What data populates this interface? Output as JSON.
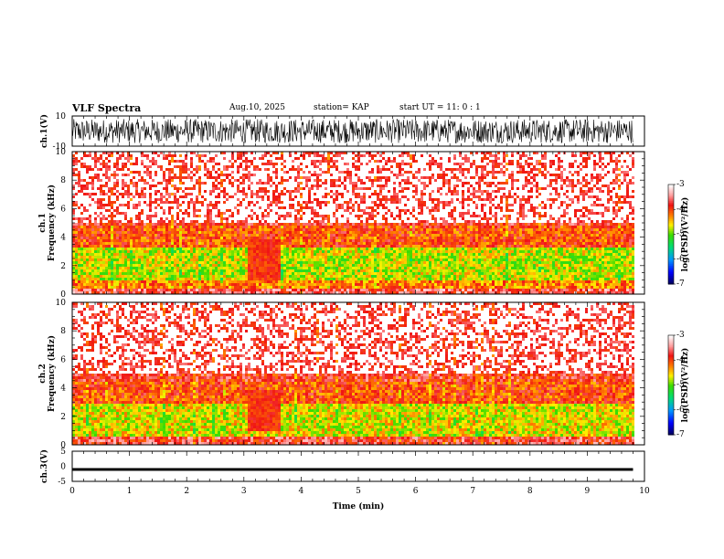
{
  "header": {
    "title": "VLF Spectra",
    "date": "Aug.10, 2025",
    "station": "station= KAP",
    "start_ut": "start  UT  =   11: 0  : 1"
  },
  "chart_data": [
    {
      "id": "ch1-waveform",
      "type": "line",
      "ylabel": "ch.1(V)",
      "ylim": [
        -10,
        10
      ],
      "ytick_labels": [
        "10",
        "-10"
      ],
      "x_range_min": [
        0,
        9.8
      ],
      "description_values": "noise waveform spanning roughly -8 to +8 V"
    },
    {
      "id": "ch1-spectrogram",
      "type": "heatmap",
      "ylabel": "ch.1",
      "ylabel2": "Frequency  (kHz)",
      "ylim": [
        0,
        10
      ],
      "ytick_labels": [
        "0",
        "2",
        "4",
        "6",
        "8",
        "10"
      ],
      "x_range_min": [
        0,
        9.8
      ],
      "colorbar": {
        "label": "log(PSD)(V²/Hz)",
        "range": [
          -7,
          -3
        ],
        "tick_labels": [
          "-3",
          "-4",
          "-5",
          "-6",
          "-7"
        ]
      },
      "bands": [
        {
          "from_khz": 0,
          "to_khz": 0.4,
          "level": -3.6
        },
        {
          "from_khz": 0.4,
          "to_khz": 1.0,
          "level": -4.2
        },
        {
          "from_khz": 1.0,
          "to_khz": 3.4,
          "level": -4.7
        },
        {
          "from_khz": 3.4,
          "to_khz": 5.0,
          "level": -4.0
        },
        {
          "from_khz": 5.0,
          "to_khz": 10,
          "level": -3.8
        }
      ],
      "quiet_interval_min": [
        3.05,
        3.6
      ]
    },
    {
      "id": "ch2-spectrogram",
      "type": "heatmap",
      "ylabel": "ch.2",
      "ylabel2": "Frequency  (kHz)",
      "ylim": [
        0,
        10
      ],
      "ytick_labels": [
        "0",
        "2",
        "4",
        "6",
        "8",
        "10"
      ],
      "x_range_min": [
        0,
        9.8
      ],
      "colorbar": {
        "label": "log(PSD)(V²/Hz)",
        "range": [
          -7,
          -3
        ],
        "tick_labels": [
          "-3",
          "-4",
          "-5",
          "-6",
          "-7"
        ]
      },
      "bands": [
        {
          "from_khz": 0,
          "to_khz": 0.6,
          "level": -3.7
        },
        {
          "from_khz": 0.6,
          "to_khz": 3.0,
          "level": -4.6
        },
        {
          "from_khz": 3.0,
          "to_khz": 4.6,
          "level": -4.0
        },
        {
          "from_khz": 4.6,
          "to_khz": 10,
          "level": -3.8
        }
      ],
      "quiet_interval_min": [
        3.05,
        3.6
      ]
    },
    {
      "id": "ch3-waveform",
      "type": "line",
      "ylabel": "ch.3(V)",
      "ylim": [
        -5,
        5
      ],
      "ytick_labels": [
        "5",
        "0",
        "-5"
      ],
      "x_range_min": [
        0,
        9.8
      ],
      "description_values": "near-constant trace around -1 V"
    }
  ],
  "xaxis": {
    "label": "Time  (min)",
    "xlim": [
      0,
      10
    ],
    "tick_labels": [
      "0",
      "1",
      "2",
      "3",
      "4",
      "5",
      "6",
      "7",
      "8",
      "9",
      "10"
    ]
  }
}
